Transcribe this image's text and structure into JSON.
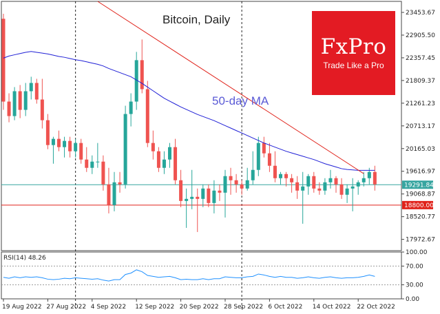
{
  "brand": {
    "name": "FxPro",
    "slogan": "Trade Like a Pro",
    "color": "#e31b23"
  },
  "chart_data": {
    "type": "candlestick",
    "title": "Bitcoin, Daily",
    "annotation": "50-day MA",
    "colors": {
      "up": "#26a69a",
      "down": "#ef5350",
      "ma": "#1f1fd6",
      "trendline": "#e0221a",
      "price_line": "#37a5a0",
      "level_line": "#e0221a"
    },
    "ylim": [
      17700,
      23720
    ],
    "yticks": [
      "23453.67",
      "22905.50",
      "22357.45",
      "21809.37",
      "21261.23",
      "20713.17",
      "20165.03",
      "19616.97",
      "19068.87",
      "18520.77",
      "17972.67"
    ],
    "xticks": [
      "19 Aug 2022",
      "27 Aug 2022",
      "4 Sep 2022",
      "12 Sep 2022",
      "20 Sep 2022",
      "28 Sep 2022",
      "6 Oct 2022",
      "14 Oct 2022",
      "22 Oct 2022"
    ],
    "xtick_index": [
      0,
      8,
      16,
      24,
      32,
      40,
      48,
      56,
      64
    ],
    "current_price": "19291.84",
    "level": "18800.00",
    "level_value": 18800,
    "current_value": 19292,
    "vlines_index": [
      13,
      43
    ],
    "trendline": [
      [
        17,
        23720
      ],
      [
        65,
        19560
      ]
    ],
    "ohlc": [
      [
        23300,
        23420,
        21100,
        21300
      ],
      [
        21300,
        21500,
        20800,
        20950
      ],
      [
        20950,
        21650,
        20850,
        21550
      ],
      [
        21550,
        21700,
        20900,
        21100
      ],
      [
        21100,
        21750,
        20950,
        21550
      ],
      [
        21550,
        21900,
        21350,
        21750
      ],
      [
        21750,
        21850,
        21250,
        21350
      ],
      [
        21350,
        21850,
        20650,
        20850
      ],
      [
        20850,
        21000,
        20150,
        20250
      ],
      [
        20250,
        20450,
        19800,
        20400
      ],
      [
        20400,
        20600,
        20100,
        20200
      ],
      [
        20200,
        20450,
        19950,
        20350
      ],
      [
        20350,
        20450,
        19950,
        20100
      ],
      [
        20100,
        20400,
        19950,
        20300
      ],
      [
        20300,
        20400,
        19800,
        19900
      ],
      [
        19900,
        20200,
        19600,
        19700
      ],
      [
        19700,
        20000,
        19550,
        19850
      ],
      [
        19850,
        20300,
        19700,
        19850
      ],
      [
        19850,
        20000,
        19150,
        19300
      ],
      [
        19300,
        19700,
        18600,
        18800
      ],
      [
        18800,
        19600,
        18650,
        19350
      ],
      [
        19350,
        19600,
        19100,
        19300
      ],
      [
        19300,
        21200,
        19200,
        21000
      ],
      [
        21000,
        21500,
        20700,
        21300
      ],
      [
        21300,
        22500,
        21100,
        22300
      ],
      [
        22300,
        22800,
        21500,
        21600
      ],
      [
        21600,
        21800,
        20200,
        20300
      ],
      [
        20300,
        20600,
        19900,
        20100
      ],
      [
        20100,
        20200,
        19600,
        19700
      ],
      [
        19700,
        20100,
        19550,
        19900
      ],
      [
        19900,
        20300,
        19700,
        20200
      ],
      [
        20200,
        20400,
        19300,
        19400
      ],
      [
        19400,
        19650,
        18750,
        18900
      ],
      [
        18900,
        19200,
        18250,
        18950
      ],
      [
        18950,
        19650,
        18700,
        19000
      ],
      [
        19000,
        19200,
        18150,
        18950
      ],
      [
        18950,
        19300,
        18750,
        19200
      ],
      [
        19200,
        19300,
        18750,
        18850
      ],
      [
        18850,
        19400,
        18600,
        19150
      ],
      [
        19150,
        19300,
        18900,
        19100
      ],
      [
        19100,
        19650,
        18500,
        19500
      ],
      [
        19500,
        19700,
        19050,
        19400
      ],
      [
        19400,
        19550,
        19100,
        19300
      ],
      [
        19300,
        19400,
        19050,
        19200
      ],
      [
        19200,
        19700,
        19150,
        19400
      ],
      [
        19400,
        20100,
        19300,
        19650
      ],
      [
        19650,
        20450,
        19500,
        20300
      ],
      [
        20300,
        20450,
        19950,
        20050
      ],
      [
        20050,
        20300,
        19600,
        19750
      ],
      [
        19750,
        20100,
        19350,
        19450
      ],
      [
        19450,
        19600,
        19300,
        19550
      ],
      [
        19550,
        19600,
        19250,
        19450
      ],
      [
        19450,
        19550,
        19100,
        19350
      ],
      [
        19350,
        19500,
        18950,
        19150
      ],
      [
        19150,
        19600,
        18350,
        19250
      ],
      [
        19250,
        19550,
        19050,
        19500
      ],
      [
        19500,
        19600,
        19100,
        19200
      ],
      [
        19200,
        19350,
        19050,
        19150
      ],
      [
        19150,
        19450,
        19050,
        19350
      ],
      [
        19350,
        19650,
        19200,
        19450
      ],
      [
        19450,
        19500,
        19100,
        19300
      ],
      [
        19300,
        19450,
        18950,
        19050
      ],
      [
        19050,
        19300,
        18850,
        19200
      ],
      [
        19200,
        19450,
        18650,
        19250
      ],
      [
        19250,
        19400,
        19050,
        19350
      ],
      [
        19350,
        19600,
        19250,
        19450
      ],
      [
        19450,
        19700,
        19300,
        19600
      ],
      [
        19600,
        19750,
        19150,
        19300
      ]
    ],
    "ma50": [
      22350,
      22400,
      22430,
      22460,
      22490,
      22510,
      22490,
      22470,
      22450,
      22420,
      22390,
      22370,
      22340,
      22310,
      22290,
      22260,
      22230,
      22200,
      22160,
      22100,
      22050,
      22000,
      21950,
      21900,
      21820,
      21740,
      21650,
      21560,
      21470,
      21380,
      21310,
      21240,
      21170,
      21110,
      21050,
      20990,
      20940,
      20890,
      20840,
      20780,
      20720,
      20660,
      20600,
      20540,
      20480,
      20420,
      20360,
      20300,
      20250,
      20200,
      20150,
      20100,
      20060,
      20020,
      19980,
      19940,
      19900,
      19850,
      19800,
      19760,
      19720,
      19680,
      19660,
      19650,
      19640,
      19640,
      19640,
      19640
    ],
    "rsi": {
      "label": "RSI(14) 48.26",
      "yticks": [
        "100.00",
        "70.00",
        "30.00",
        "0.00"
      ],
      "levels": [
        70,
        30
      ],
      "ylim": [
        0,
        100
      ],
      "color": "#1e90ff",
      "values": [
        46,
        44,
        47,
        45,
        47,
        46,
        47,
        45,
        42,
        41,
        42,
        44,
        43,
        45,
        44,
        43,
        42,
        43,
        40,
        38,
        41,
        41,
        52,
        55,
        62,
        58,
        50,
        48,
        46,
        47,
        48,
        45,
        41,
        42,
        41,
        41,
        43,
        41,
        43,
        43,
        47,
        46,
        45,
        45,
        47,
        48,
        53,
        51,
        48,
        46,
        48,
        46,
        46,
        44,
        45,
        47,
        45,
        44,
        46,
        47,
        45,
        44,
        45,
        45,
        46,
        48,
        51,
        48
      ]
    }
  }
}
